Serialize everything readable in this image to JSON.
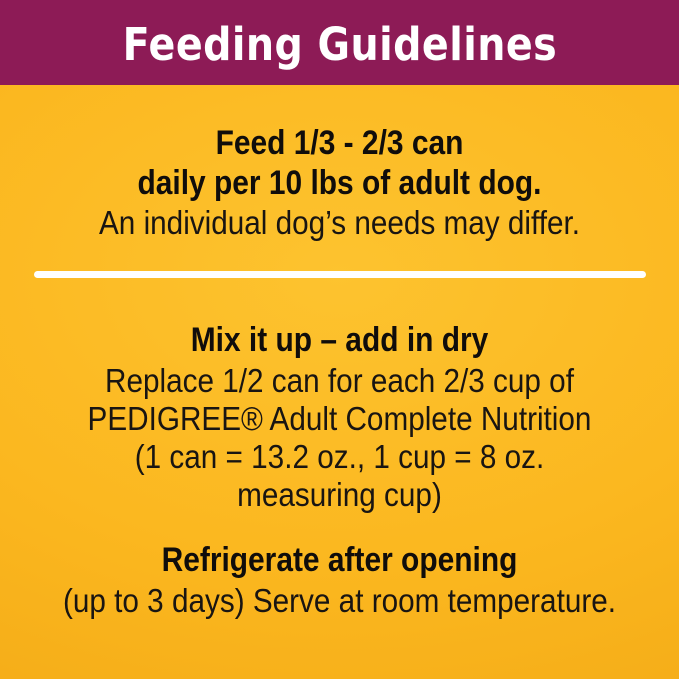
{
  "colors": {
    "header_bg": "#8D1B56",
    "body_bg": "#FBB71F",
    "body_bg_light": "#FDC32F",
    "body_bg_edge": "#F3AA16",
    "title_text": "#FFFFFF",
    "body_text": "#191512",
    "divider": "#FFFFFF"
  },
  "header": {
    "title": "Feeding Guidelines"
  },
  "feeding": {
    "line1": "Feed 1/3 - 2/3 can",
    "line2": "daily per 10 lbs of adult dog.",
    "note": "An individual dog’s needs may differ."
  },
  "mix": {
    "heading": "Mix it up – add in dry",
    "line1": "Replace 1/2 can for each 2/3 cup of",
    "line2": "PEDIGREE® Adult Complete Nutrition",
    "line3": "(1 can = 13.2 oz., 1 cup = 8 oz.",
    "line4": "measuring cup)"
  },
  "storage": {
    "heading": "Refrigerate after opening",
    "line1": "(up to 3 days) Serve at room temperature."
  }
}
